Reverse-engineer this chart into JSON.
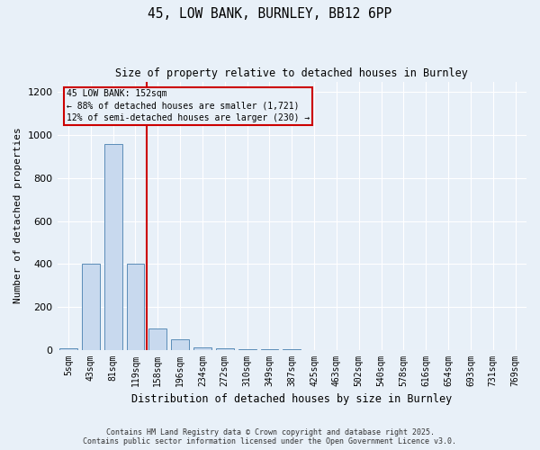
{
  "title1": "45, LOW BANK, BURNLEY, BB12 6PP",
  "title2": "Size of property relative to detached houses in Burnley",
  "xlabel": "Distribution of detached houses by size in Burnley",
  "ylabel": "Number of detached properties",
  "categories": [
    "5sqm",
    "43sqm",
    "81sqm",
    "119sqm",
    "158sqm",
    "196sqm",
    "234sqm",
    "272sqm",
    "310sqm",
    "349sqm",
    "387sqm",
    "425sqm",
    "463sqm",
    "502sqm",
    "540sqm",
    "578sqm",
    "616sqm",
    "654sqm",
    "693sqm",
    "731sqm",
    "769sqm"
  ],
  "values": [
    5,
    400,
    960,
    400,
    100,
    50,
    10,
    5,
    2,
    2,
    1,
    0,
    0,
    0,
    0,
    0,
    0,
    0,
    0,
    0,
    0
  ],
  "bar_color": "#c8d9ee",
  "bar_edge_color": "#5b8db8",
  "vline_x_index": 3.5,
  "vline_color": "#cc0000",
  "annotation_title": "45 LOW BANK: 152sqm",
  "annotation_line1": "← 88% of detached houses are smaller (1,721)",
  "annotation_line2": "12% of semi-detached houses are larger (230) →",
  "annotation_box_color": "#cc0000",
  "ylim": [
    0,
    1250
  ],
  "yticks": [
    0,
    200,
    400,
    600,
    800,
    1000,
    1200
  ],
  "footer1": "Contains HM Land Registry data © Crown copyright and database right 2025.",
  "footer2": "Contains public sector information licensed under the Open Government Licence v3.0.",
  "bg_color": "#e8f0f8"
}
